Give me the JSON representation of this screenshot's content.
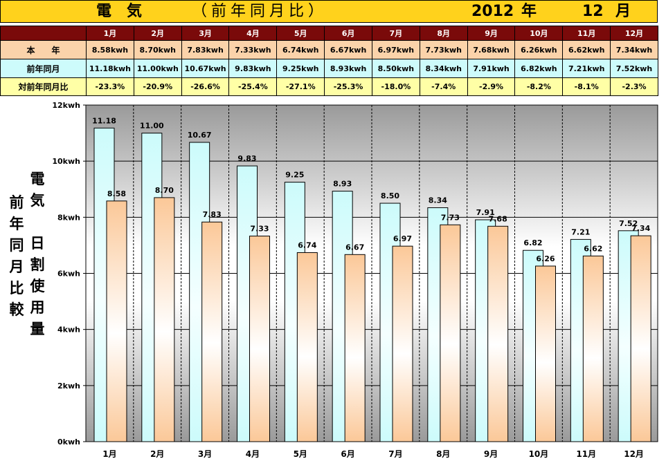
{
  "title": {
    "main": "電気",
    "sub": "（前年同月比）",
    "year": "2012",
    "year_unit": "年",
    "month": "12",
    "month_unit": "月"
  },
  "table": {
    "row_labels": {
      "current": "本　　年",
      "previous": "前年同月",
      "ratio": "対前年同月比"
    },
    "months": [
      "1月",
      "2月",
      "3月",
      "4月",
      "5月",
      "6月",
      "7月",
      "8月",
      "9月",
      "10月",
      "11月",
      "12月"
    ],
    "current": [
      "8.58kwh",
      "8.70kwh",
      "7.83kwh",
      "7.33kwh",
      "6.74kwh",
      "6.67kwh",
      "6.97kwh",
      "7.73kwh",
      "7.68kwh",
      "6.26kwh",
      "6.62kwh",
      "7.34kwh"
    ],
    "previous": [
      "11.18kwh",
      "11.00kwh",
      "10.67kwh",
      "9.83kwh",
      "9.25kwh",
      "8.93kwh",
      "8.50kwh",
      "8.34kwh",
      "7.91kwh",
      "6.82kwh",
      "7.21kwh",
      "7.52kwh"
    ],
    "ratio": [
      "-23.3%",
      "-20.9%",
      "-26.6%",
      "-25.4%",
      "-27.1%",
      "-25.3%",
      "-18.0%",
      "-7.4%",
      "-2.9%",
      "-8.2%",
      "-8.1%",
      "-2.3%"
    ]
  },
  "chart_data": {
    "type": "bar",
    "categories": [
      "1月",
      "2月",
      "3月",
      "4月",
      "5月",
      "6月",
      "7月",
      "8月",
      "9月",
      "10月",
      "11月",
      "12月"
    ],
    "series": [
      {
        "key": "previous",
        "values": [
          11.18,
          11.0,
          10.67,
          9.83,
          9.25,
          8.93,
          8.5,
          8.34,
          7.91,
          6.82,
          7.21,
          7.52
        ]
      },
      {
        "key": "current",
        "values": [
          8.58,
          8.7,
          7.83,
          7.33,
          6.74,
          6.67,
          6.97,
          7.73,
          7.68,
          6.26,
          6.62,
          7.34
        ]
      }
    ],
    "data_labels_previous": [
      "11.18",
      "11.00",
      "10.67",
      "9.83",
      "9.25",
      "8.93",
      "8.50",
      "8.34",
      "7.91",
      "6.82",
      "7.21",
      "7.52"
    ],
    "data_labels_current": [
      "8.58",
      "8.70",
      "7.83",
      "7.33",
      "6.74",
      "6.67",
      "6.97",
      "7.73",
      "7.68",
      "6.26",
      "6.62",
      "7.34"
    ],
    "ylim": [
      0,
      12
    ],
    "y_ticks": [
      0,
      2,
      4,
      6,
      8,
      10,
      12
    ],
    "y_tick_labels": [
      "0kwh",
      "2kwh",
      "4kwh",
      "6kwh",
      "8kwh",
      "10kwh",
      "12kwh"
    ],
    "ylabel_right": [
      "電",
      "気",
      "",
      "日",
      "割",
      "使",
      "用",
      "量"
    ],
    "ylabel_left": [
      "前",
      "年",
      "同",
      "月",
      "比",
      "較"
    ],
    "grid": true,
    "colors": {
      "previous_top": "#ccfbfb",
      "previous_bottom": "#f4ffff",
      "current_top": "#fbc898",
      "current_bottom": "#ffffff",
      "plot_top": "#9a9a9a",
      "plot_mid": "#ffffff"
    }
  }
}
